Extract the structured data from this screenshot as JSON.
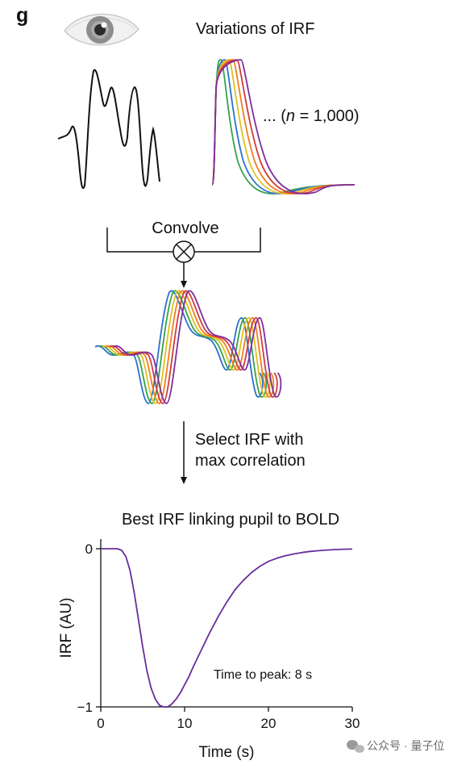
{
  "panel": {
    "letter": "g"
  },
  "top": {
    "irf_title": "Variations of IRF",
    "n_prefix": "... (",
    "n_italic": "n",
    "n_suffix": " = 1,000)",
    "icons": {
      "eye": "eye-icon"
    }
  },
  "convolve": {
    "label": "Convolve",
    "operator_icon": "circle-times-icon"
  },
  "select": {
    "line1": "Select IRF with",
    "line2": "max correlation"
  },
  "series_colors": [
    "#2e6fd0",
    "#35a24a",
    "#e0c020",
    "#ef7f22",
    "#d23b3b",
    "#7b2f9e"
  ],
  "chart_data": {
    "type": "line",
    "title": "Best IRF linking pupil to BOLD",
    "xlabel": "Time (s)",
    "ylabel": "IRF (AU)",
    "xlim": [
      0,
      30
    ],
    "ylim": [
      -1,
      0
    ],
    "xticks": [
      0,
      10,
      20,
      30
    ],
    "yticks": [
      0,
      -1
    ],
    "grid": false,
    "annotation": "Time to peak: 8 s",
    "line_color": "#6a2c9c",
    "series": [
      {
        "x": [
          0,
          1,
          2,
          2.5,
          3,
          3.5,
          4,
          4.5,
          5,
          5.5,
          6,
          6.5,
          7,
          7.5,
          8,
          8.5,
          9,
          9.5,
          10,
          10.5,
          11,
          12,
          13,
          14,
          15,
          16,
          17,
          18,
          19,
          20,
          21,
          22,
          23,
          24,
          25,
          26,
          27,
          28,
          29,
          30
        ],
        "y": [
          0,
          0,
          0,
          -0.01,
          -0.05,
          -0.14,
          -0.28,
          -0.45,
          -0.62,
          -0.77,
          -0.88,
          -0.95,
          -0.99,
          -1.0,
          -1.0,
          -0.98,
          -0.95,
          -0.91,
          -0.86,
          -0.81,
          -0.75,
          -0.64,
          -0.53,
          -0.43,
          -0.34,
          -0.26,
          -0.2,
          -0.15,
          -0.11,
          -0.08,
          -0.06,
          -0.045,
          -0.033,
          -0.024,
          -0.017,
          -0.012,
          -0.008,
          -0.005,
          -0.003,
          -0.002
        ]
      }
    ]
  },
  "watermark": {
    "icon": "wechat-icon",
    "text": "公众号 · 量子位"
  }
}
